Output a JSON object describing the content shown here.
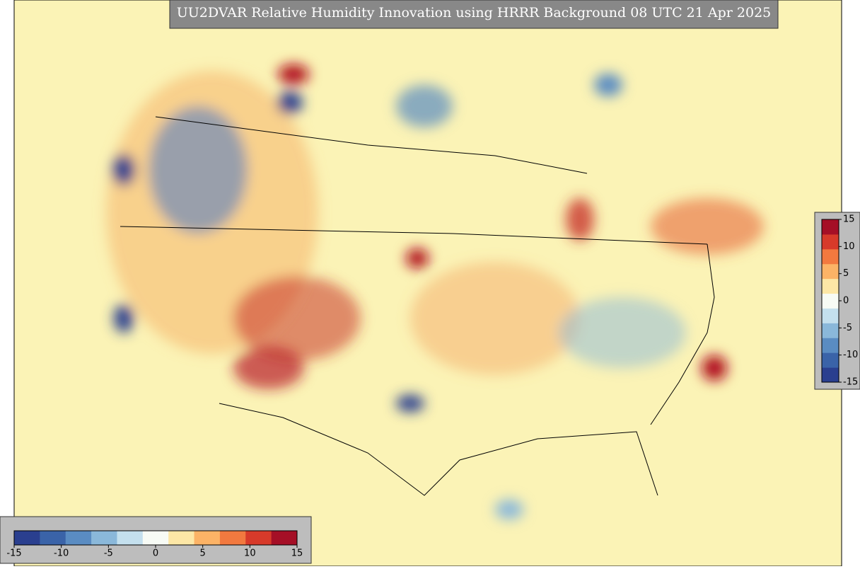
{
  "title": "UU2DVAR Relative Humidity Innovation using HRRR Background 08 UTC 21 Apr 2025",
  "colorbar": {
    "clim": [
      -15,
      15
    ],
    "ticks": [
      -15,
      -10,
      -5,
      0,
      5,
      10,
      15
    ],
    "colors": [
      "#2a3f8f",
      "#3a63a8",
      "#5a8cc2",
      "#8ab8da",
      "#c4e0ee",
      "#f7fbf5",
      "#fde7a6",
      "#fcb366",
      "#f2793f",
      "#d73a2a",
      "#a50f26"
    ]
  }
}
